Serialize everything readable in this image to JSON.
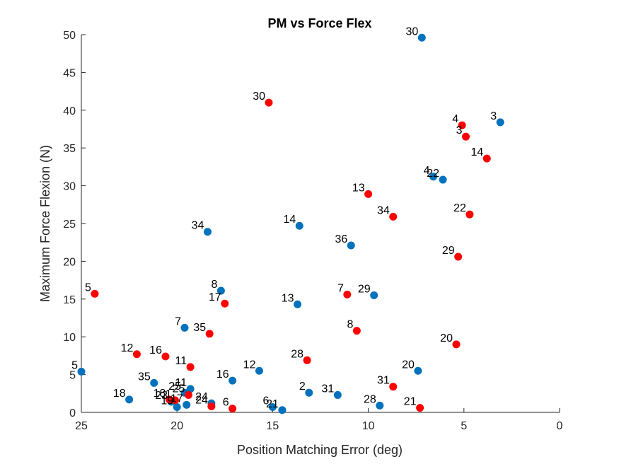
{
  "chart_data": {
    "type": "scatter",
    "title": "PM vs Force Flex",
    "xlabel": "Position Matching Error (deg)",
    "ylabel": "Maximum Force Flexion (N)",
    "xlim": [
      25,
      0
    ],
    "ylim": [
      0,
      50
    ],
    "x_reversed": true,
    "xticks": [
      "25",
      "20",
      "15",
      "10",
      "5",
      "0"
    ],
    "yticks": [
      "0",
      "5",
      "10",
      "15",
      "20",
      "25",
      "30",
      "35",
      "40",
      "45",
      "50"
    ],
    "grid": false,
    "legend": "none",
    "series": [
      {
        "color": "#0072BD",
        "points": [
          {
            "x": 7.2,
            "y": 49.6,
            "label": "30"
          },
          {
            "x": 3.1,
            "y": 38.4,
            "label": "3"
          },
          {
            "x": 6.6,
            "y": 31.2,
            "label": "4"
          },
          {
            "x": 6.1,
            "y": 30.8,
            "label": "22"
          },
          {
            "x": 18.4,
            "y": 23.9,
            "label": "34"
          },
          {
            "x": 13.6,
            "y": 24.7,
            "label": "14"
          },
          {
            "x": 10.9,
            "y": 22.1,
            "label": "36"
          },
          {
            "x": 17.7,
            "y": 16.1,
            "label": "8"
          },
          {
            "x": 9.7,
            "y": 15.5,
            "label": "29"
          },
          {
            "x": 13.7,
            "y": 14.3,
            "label": "13"
          },
          {
            "x": 19.6,
            "y": 11.2,
            "label": "7"
          },
          {
            "x": 25.0,
            "y": 5.4,
            "label": "5"
          },
          {
            "x": 15.7,
            "y": 5.5,
            "label": "12"
          },
          {
            "x": 7.4,
            "y": 5.5,
            "label": "20"
          },
          {
            "x": 17.1,
            "y": 4.2,
            "label": "16"
          },
          {
            "x": 21.2,
            "y": 3.9,
            "label": "35"
          },
          {
            "x": 19.3,
            "y": 3.1,
            "label": "11"
          },
          {
            "x": 19.6,
            "y": 2.6,
            "label": "25"
          },
          {
            "x": 22.5,
            "y": 1.7,
            "label": "18"
          },
          {
            "x": 13.1,
            "y": 2.6,
            "label": "2"
          },
          {
            "x": 11.6,
            "y": 2.3,
            "label": "31"
          },
          {
            "x": 20.3,
            "y": 1.4,
            "label": "23"
          },
          {
            "x": 20.0,
            "y": 0.7,
            "label": "19"
          },
          {
            "x": 19.5,
            "y": 1.0,
            "label": "17"
          },
          {
            "x": 18.2,
            "y": 1.2,
            "label": "24"
          },
          {
            "x": 15.0,
            "y": 0.7,
            "label": "6"
          },
          {
            "x": 14.5,
            "y": 0.3,
            "label": "21"
          },
          {
            "x": 9.4,
            "y": 0.9,
            "label": "28"
          }
        ]
      },
      {
        "color": "#FF0000",
        "points": [
          {
            "x": 15.2,
            "y": 41.0,
            "label": "30"
          },
          {
            "x": 5.1,
            "y": 38.0,
            "label": "4"
          },
          {
            "x": 4.9,
            "y": 36.5,
            "label": "3"
          },
          {
            "x": 3.8,
            "y": 33.6,
            "label": "14"
          },
          {
            "x": 10.0,
            "y": 28.9,
            "label": "13"
          },
          {
            "x": 8.7,
            "y": 25.9,
            "label": "34"
          },
          {
            "x": 4.7,
            "y": 26.2,
            "label": "22"
          },
          {
            "x": 5.3,
            "y": 20.6,
            "label": "29"
          },
          {
            "x": 24.3,
            "y": 15.7,
            "label": "5"
          },
          {
            "x": 11.1,
            "y": 15.6,
            "label": "7"
          },
          {
            "x": 17.5,
            "y": 14.4,
            "label": "17"
          },
          {
            "x": 18.3,
            "y": 10.4,
            "label": "35"
          },
          {
            "x": 10.6,
            "y": 10.8,
            "label": "8"
          },
          {
            "x": 5.4,
            "y": 9.0,
            "label": "20"
          },
          {
            "x": 22.1,
            "y": 7.7,
            "label": "12"
          },
          {
            "x": 20.6,
            "y": 7.4,
            "label": "16"
          },
          {
            "x": 13.2,
            "y": 6.9,
            "label": "28"
          },
          {
            "x": 19.3,
            "y": 6.0,
            "label": "11"
          },
          {
            "x": 8.7,
            "y": 3.4,
            "label": "31"
          },
          {
            "x": 19.4,
            "y": 2.3,
            "label": "25"
          },
          {
            "x": 20.4,
            "y": 1.7,
            "label": "18"
          },
          {
            "x": 20.1,
            "y": 1.6,
            "label": "1"
          },
          {
            "x": 18.2,
            "y": 0.8,
            "label": "24"
          },
          {
            "x": 17.1,
            "y": 0.5,
            "label": "6"
          },
          {
            "x": 7.3,
            "y": 0.6,
            "label": "21"
          }
        ]
      }
    ]
  }
}
